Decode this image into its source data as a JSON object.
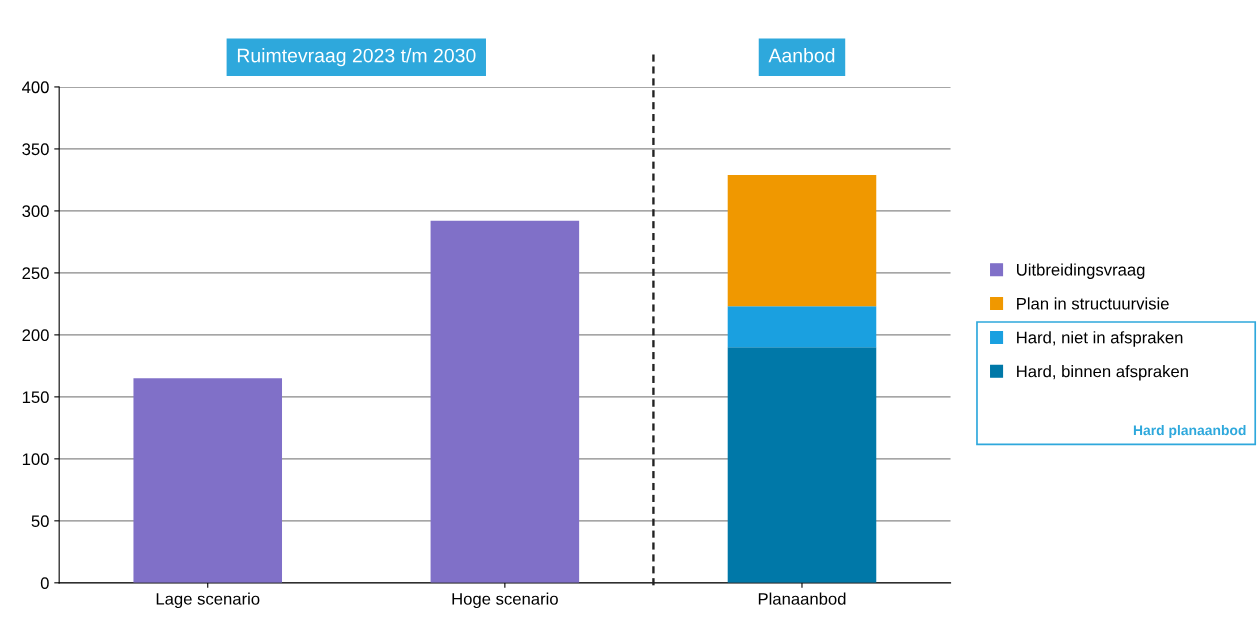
{
  "chart_data": {
    "type": "bar",
    "stacked": true,
    "categories": [
      "Lage scenario",
      "Hoge scenario",
      "Planaanbod"
    ],
    "series": [
      {
        "name": "Uitbreidingsvraag",
        "color": "#8070c8",
        "values": [
          165,
          292,
          null
        ]
      },
      {
        "name": "Hard, binnen afspraken",
        "color": "#0078a8",
        "values": [
          null,
          null,
          190
        ]
      },
      {
        "name": "Hard, niet in afspraken",
        "color": "#1aa0e0",
        "values": [
          null,
          null,
          33
        ]
      },
      {
        "name": "Plan in structuurvisie",
        "color": "#f09800",
        "values": [
          null,
          null,
          106
        ]
      }
    ],
    "ylim": [
      0,
      400
    ],
    "yticks": [
      0,
      50,
      100,
      150,
      200,
      250,
      300,
      350,
      400
    ],
    "grid": "y",
    "legend": "right",
    "annotations": [
      "Ruimtevraag 2023 t/m 2030",
      "Aanbod",
      "Hard planaanbod"
    ]
  }
}
